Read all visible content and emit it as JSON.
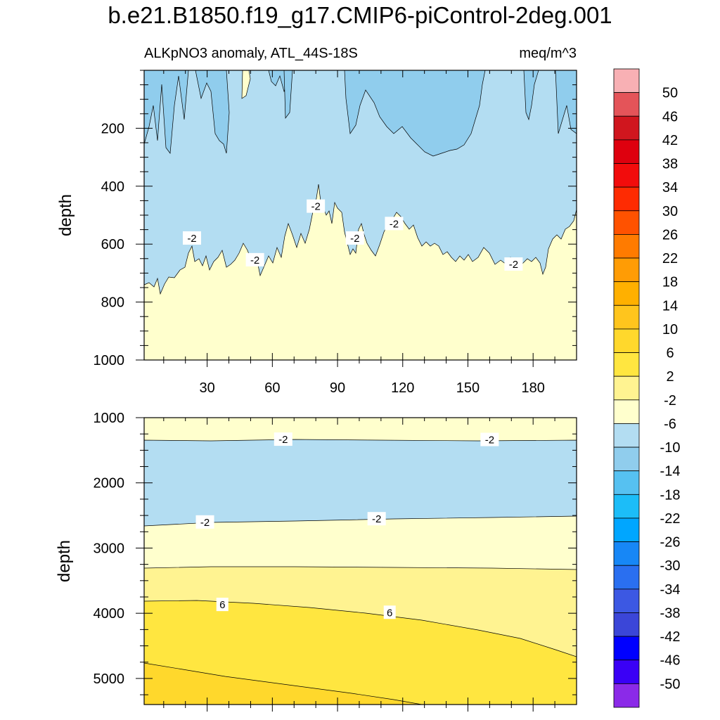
{
  "title": "b.e21.B1850.f19_g17.CMIP6-piControl-2deg.001",
  "units": "meq/m^3",
  "chart_data": [
    {
      "type": "contour",
      "subtitle": "ALKpNO3 anomaly, ATL_44S-18S",
      "units": "meq/m^3",
      "xlabel": "",
      "ylabel": "depth",
      "xlim": [
        1,
        200
      ],
      "ylim": [
        0,
        1000
      ],
      "y_reversed": true,
      "xticks": [
        30,
        60,
        90,
        120,
        150,
        180
      ],
      "yticks": [
        200,
        400,
        600,
        800,
        1000
      ],
      "contour_labels": [
        {
          "text": "-2",
          "x": 23,
          "y": 580
        },
        {
          "text": "-2",
          "x": 52,
          "y": 655
        },
        {
          "text": "-2",
          "x": 80,
          "y": 470
        },
        {
          "text": "-2",
          "x": 98,
          "y": 580
        },
        {
          "text": "-2",
          "x": 116,
          "y": 530
        },
        {
          "text": "-2",
          "x": 171,
          "y": 670
        }
      ],
      "regions": [
        {
          "range": "-10 to -6",
          "description": "upper-ocean patches, depth 0-300"
        },
        {
          "range": "-6 to -2",
          "description": "depth ~0-700"
        },
        {
          "range": "-2 to 2",
          "description": "below ~500-750 m"
        }
      ]
    },
    {
      "type": "contour",
      "subtitle": "",
      "xlabel": "",
      "ylabel": "depth",
      "xlim": [
        1,
        200
      ],
      "ylim": [
        1000,
        5400
      ],
      "y_reversed": true,
      "xticks": [
        30,
        60,
        90,
        120,
        150,
        180
      ],
      "yticks": [
        1000,
        2000,
        3000,
        4000,
        5000
      ],
      "contour_labels": [
        {
          "text": "-2",
          "x": 65,
          "y": 1335
        },
        {
          "text": "-2",
          "x": 160,
          "y": 1340
        },
        {
          "text": "-2",
          "x": 29,
          "y": 2605
        },
        {
          "text": "-2",
          "x": 108,
          "y": 2555
        },
        {
          "text": "6",
          "x": 37,
          "y": 3870
        },
        {
          "text": "6",
          "x": 114,
          "y": 3990
        }
      ],
      "regions": [
        {
          "range": "-2 to 2",
          "description": "depth 1000-1350"
        },
        {
          "range": "-6 to -2",
          "description": "depth ~1350-2600"
        },
        {
          "range": "-2 to 2",
          "description": "depth ~2600-3300"
        },
        {
          "range": "2 to 6",
          "description": "depth ~3300-3800"
        },
        {
          "range": "6 to 10",
          "description": "depth ~3800-bottom"
        },
        {
          "range": "10 to 14",
          "description": "bottom-left corner"
        }
      ]
    }
  ],
  "colorbar": {
    "labels": [
      "50",
      "46",
      "42",
      "38",
      "34",
      "30",
      "26",
      "22",
      "18",
      "14",
      "10",
      "6",
      "2",
      "-2",
      "-6",
      "-10",
      "-14",
      "-18",
      "-22",
      "-26",
      "-30",
      "-34",
      "-38",
      "-42",
      "-46",
      "-50"
    ],
    "colors": [
      "#f8b0b4",
      "#e45459",
      "#d0161e",
      "#de000e",
      "#f20c0c",
      "#fe2b02",
      "#ff5200",
      "#ff7b00",
      "#ff9c05",
      "#ffb000",
      "#ffc51d",
      "#ffd82c",
      "#ffe640",
      "#fff391",
      "#ffffcd",
      "#b3ddf2",
      "#90cded",
      "#56c1f1",
      "#1cbdf8",
      "#00a6ff",
      "#1787f6",
      "#2a6ff0",
      "#3c58e3",
      "#3b46d8",
      "#0000ff",
      "#3a00f6",
      "#8b2ae8"
    ]
  },
  "colors": {
    "c_m10_m6": "#90cded",
    "c_m6_m2": "#b3ddf2",
    "c_m2_2": "#ffffcd",
    "c_2_6": "#fff391",
    "c_6_10": "#ffe640",
    "c_10_14": "#ffd82c"
  }
}
